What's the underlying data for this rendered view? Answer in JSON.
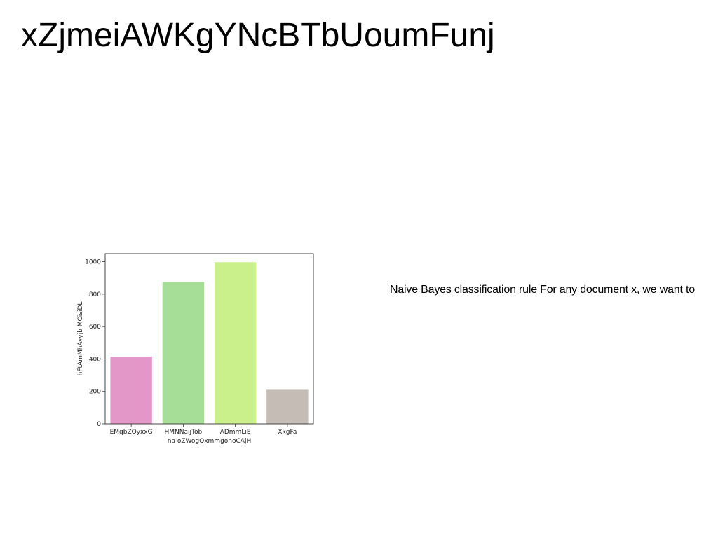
{
  "slide": {
    "title": "xZjmeiAWKgYNcBTbUoumFunj",
    "body_text": "Naive Bayes classification rule For any document x, we want to"
  },
  "chart_data": {
    "type": "bar",
    "categories": [
      "EMqbZQyxxG",
      "HMNNaijTob",
      "ADmmLiE",
      "XkgFa"
    ],
    "values": [
      415,
      875,
      997,
      210
    ],
    "colors": [
      "#e397c8",
      "#a6de98",
      "#c9f08a",
      "#c5bdb5"
    ],
    "xlabel": "na oZWogQxmmgonoCAjH",
    "ylabel": "hFtAmMhAyyjb MCisiDL",
    "ylim": [
      0,
      1050
    ],
    "yticks": [
      0,
      200,
      400,
      600,
      800,
      1000
    ],
    "grid": false,
    "legend": "none"
  }
}
